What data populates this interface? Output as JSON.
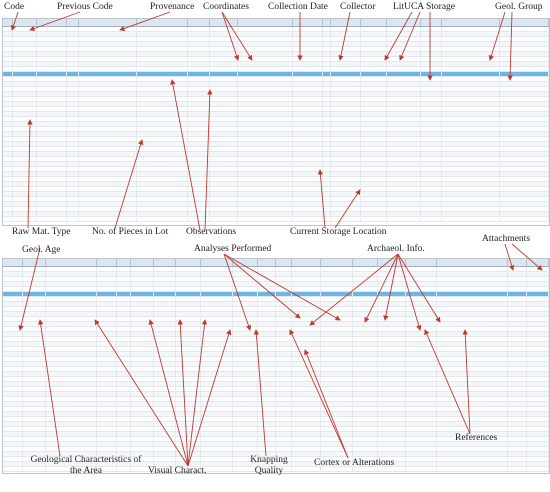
{
  "labels_top": [
    "Code",
    "Previous Code",
    "Provenance",
    "Coordinates",
    "Collection Date",
    "Collector",
    "LitUCA Storage",
    "Geol. Group"
  ],
  "labels_mid": [
    "Raw Mat. Type",
    "No. of Pieces in Lot",
    "Observations",
    "Current Storage Location"
  ],
  "labels_mid2": [
    "Geol. Age",
    "Analyses Performed",
    "Archaeol. Info.",
    "Attachments"
  ],
  "labels_bottom": [
    "Geological Characteristics of the Area",
    "Visual Charact.",
    "Knapping Quality",
    "Cortex or Alterations",
    "References"
  ],
  "colors": {
    "arrow": "#c0392b",
    "header": "#dde6ef",
    "selected_row": "#6db7e6"
  }
}
